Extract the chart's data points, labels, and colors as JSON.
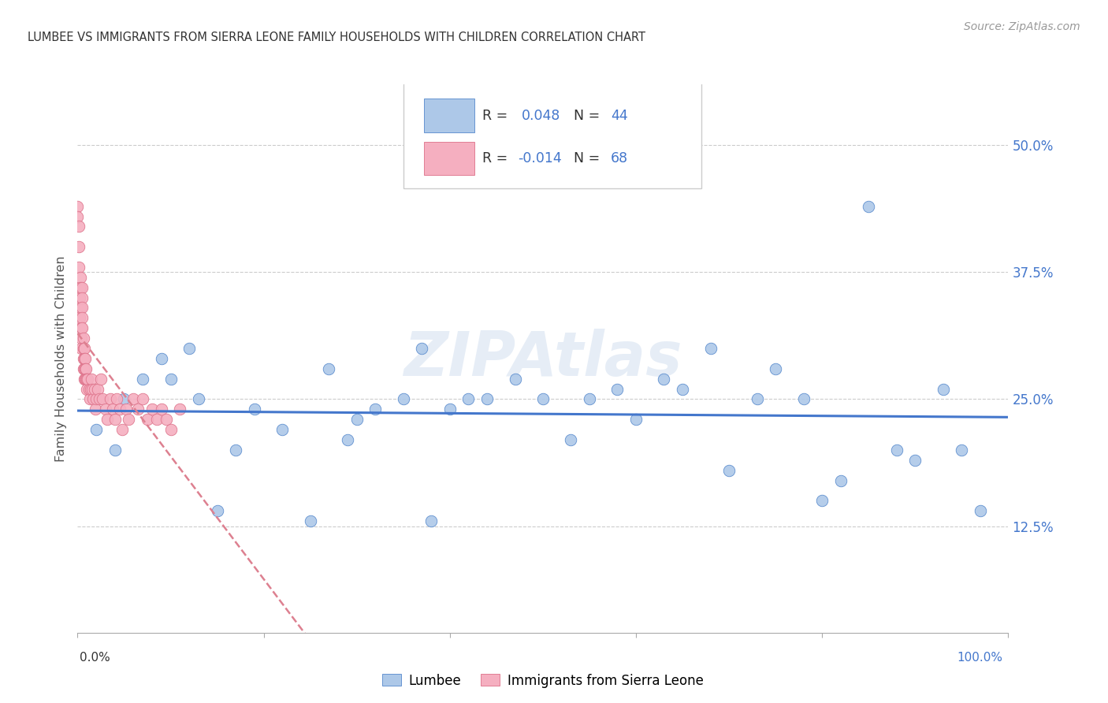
{
  "title": "LUMBEE VS IMMIGRANTS FROM SIERRA LEONE FAMILY HOUSEHOLDS WITH CHILDREN CORRELATION CHART",
  "source": "Source: ZipAtlas.com",
  "ylabel": "Family Households with Children",
  "ytick_vals": [
    0.125,
    0.25,
    0.375,
    0.5
  ],
  "ytick_labels": [
    "12.5%",
    "25.0%",
    "37.5%",
    "50.0%"
  ],
  "xlim": [
    0.0,
    1.0
  ],
  "ylim": [
    0.02,
    0.56
  ],
  "lumbee_color": "#adc8e8",
  "sierra_leone_color": "#f5afc0",
  "lumbee_edge_color": "#5588cc",
  "sierra_leone_edge_color": "#dd7088",
  "lumbee_line_color": "#4477cc",
  "sierra_leone_line_color": "#dd8090",
  "watermark": "ZIPAtlas",
  "background_color": "#ffffff",
  "grid_color": "#cccccc",
  "title_color": "#333333",
  "source_color": "#999999",
  "ylabel_color": "#555555",
  "ytick_color": "#4477cc",
  "lumbee_x": [
    0.02,
    0.04,
    0.05,
    0.07,
    0.09,
    0.1,
    0.12,
    0.13,
    0.15,
    0.17,
    0.19,
    0.22,
    0.25,
    0.27,
    0.29,
    0.3,
    0.32,
    0.35,
    0.37,
    0.38,
    0.4,
    0.42,
    0.44,
    0.47,
    0.5,
    0.53,
    0.55,
    0.58,
    0.6,
    0.63,
    0.65,
    0.68,
    0.7,
    0.73,
    0.75,
    0.78,
    0.8,
    0.82,
    0.85,
    0.88,
    0.9,
    0.93,
    0.95,
    0.97
  ],
  "lumbee_y": [
    0.22,
    0.2,
    0.25,
    0.27,
    0.29,
    0.27,
    0.3,
    0.25,
    0.14,
    0.2,
    0.24,
    0.22,
    0.13,
    0.28,
    0.21,
    0.23,
    0.24,
    0.25,
    0.3,
    0.13,
    0.24,
    0.25,
    0.25,
    0.27,
    0.25,
    0.21,
    0.25,
    0.26,
    0.23,
    0.27,
    0.26,
    0.3,
    0.18,
    0.25,
    0.28,
    0.25,
    0.15,
    0.17,
    0.44,
    0.2,
    0.19,
    0.26,
    0.2,
    0.14
  ],
  "sierra_leone_x": [
    0.0,
    0.0,
    0.001,
    0.001,
    0.001,
    0.002,
    0.002,
    0.002,
    0.003,
    0.003,
    0.003,
    0.004,
    0.004,
    0.004,
    0.005,
    0.005,
    0.005,
    0.005,
    0.005,
    0.006,
    0.006,
    0.006,
    0.006,
    0.007,
    0.007,
    0.007,
    0.007,
    0.008,
    0.008,
    0.008,
    0.009,
    0.009,
    0.01,
    0.01,
    0.011,
    0.012,
    0.013,
    0.014,
    0.015,
    0.016,
    0.017,
    0.018,
    0.019,
    0.02,
    0.022,
    0.023,
    0.025,
    0.027,
    0.03,
    0.032,
    0.035,
    0.038,
    0.04,
    0.042,
    0.045,
    0.048,
    0.052,
    0.055,
    0.06,
    0.065,
    0.07,
    0.075,
    0.08,
    0.085,
    0.09,
    0.095,
    0.1,
    0.11
  ],
  "sierra_leone_y": [
    0.44,
    0.43,
    0.42,
    0.4,
    0.38,
    0.36,
    0.35,
    0.33,
    0.37,
    0.36,
    0.34,
    0.32,
    0.31,
    0.3,
    0.36,
    0.35,
    0.34,
    0.33,
    0.32,
    0.31,
    0.3,
    0.29,
    0.28,
    0.3,
    0.29,
    0.28,
    0.27,
    0.29,
    0.28,
    0.27,
    0.28,
    0.27,
    0.27,
    0.26,
    0.27,
    0.26,
    0.25,
    0.26,
    0.27,
    0.26,
    0.25,
    0.26,
    0.24,
    0.25,
    0.26,
    0.25,
    0.27,
    0.25,
    0.24,
    0.23,
    0.25,
    0.24,
    0.23,
    0.25,
    0.24,
    0.22,
    0.24,
    0.23,
    0.25,
    0.24,
    0.25,
    0.23,
    0.24,
    0.23,
    0.24,
    0.23,
    0.22,
    0.24
  ]
}
